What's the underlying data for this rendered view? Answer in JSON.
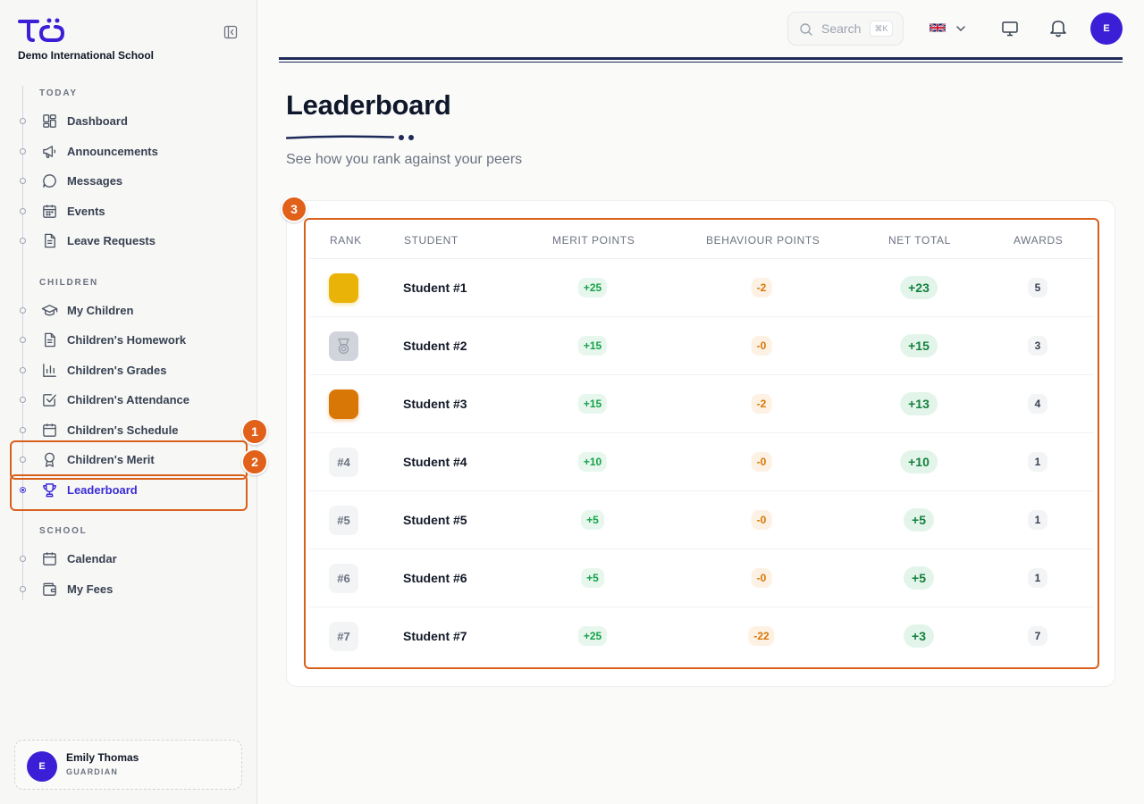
{
  "school": {
    "name": "Demo International School"
  },
  "sidebar": {
    "sections": [
      {
        "label": "TODAY"
      },
      {
        "label": "CHILDREN"
      },
      {
        "label": "SCHOOL"
      }
    ],
    "items": [
      {
        "label": "Dashboard",
        "icon": "dashboard-icon"
      },
      {
        "label": "Announcements",
        "icon": "megaphone-icon"
      },
      {
        "label": "Messages",
        "icon": "message-icon"
      },
      {
        "label": "Events",
        "icon": "calendar-grid-icon"
      },
      {
        "label": "Leave Requests",
        "icon": "document-icon"
      },
      {
        "label": "My Children",
        "icon": "graduation-cap-icon"
      },
      {
        "label": "Children's Homework",
        "icon": "document-icon"
      },
      {
        "label": "Children's Grades",
        "icon": "bar-chart-icon"
      },
      {
        "label": "Children's Attendance",
        "icon": "checkbox-icon"
      },
      {
        "label": "Children's Schedule",
        "icon": "calendar-icon"
      },
      {
        "label": "Children's Merit",
        "icon": "award-icon"
      },
      {
        "label": "Leaderboard",
        "icon": "trophy-icon",
        "active": true
      },
      {
        "label": "Calendar",
        "icon": "calendar-icon"
      },
      {
        "label": "My Fees",
        "icon": "wallet-icon"
      }
    ]
  },
  "user": {
    "initial": "E",
    "name": "Emily Thomas",
    "role": "GUARDIAN"
  },
  "topbar": {
    "search_placeholder": "Search",
    "search_shortcut": "⌘K",
    "language_flag": "uk-flag-icon",
    "avatar_initial": "E"
  },
  "annotations": [
    "1",
    "2",
    "3"
  ],
  "page": {
    "title": "Leaderboard",
    "subtitle": "See how you rank against your peers"
  },
  "table": {
    "headers": [
      "RANK",
      "STUDENT",
      "MERIT POINTS",
      "BEHAVIOUR POINTS",
      "NET TOTAL",
      "AWARDS"
    ],
    "rows": [
      {
        "rank": "",
        "medal": "gold",
        "student": "Student #1",
        "merit": "+25",
        "behaviour": "-2",
        "net": "+23",
        "awards": "5"
      },
      {
        "rank": "",
        "medal": "silver",
        "student": "Student #2",
        "merit": "+15",
        "behaviour": "-0",
        "net": "+15",
        "awards": "3"
      },
      {
        "rank": "",
        "medal": "bronze",
        "student": "Student #3",
        "merit": "+15",
        "behaviour": "-2",
        "net": "+13",
        "awards": "4"
      },
      {
        "rank": "#4",
        "medal": "",
        "student": "Student #4",
        "merit": "+10",
        "behaviour": "-0",
        "net": "+10",
        "awards": "1"
      },
      {
        "rank": "#5",
        "medal": "",
        "student": "Student #5",
        "merit": "+5",
        "behaviour": "-0",
        "net": "+5",
        "awards": "1"
      },
      {
        "rank": "#6",
        "medal": "",
        "student": "Student #6",
        "merit": "+5",
        "behaviour": "-0",
        "net": "+5",
        "awards": "1"
      },
      {
        "rank": "#7",
        "medal": "",
        "student": "Student #7",
        "merit": "+25",
        "behaviour": "-22",
        "net": "+3",
        "awards": "7"
      }
    ]
  },
  "colors": {
    "brand": "#3b1fd6",
    "annotation": "#e1611a",
    "merit_text": "#16a34a",
    "behaviour_text": "#d97706",
    "gold": "#eab308",
    "silver": "#d1d5db",
    "bronze": "#d97706"
  }
}
